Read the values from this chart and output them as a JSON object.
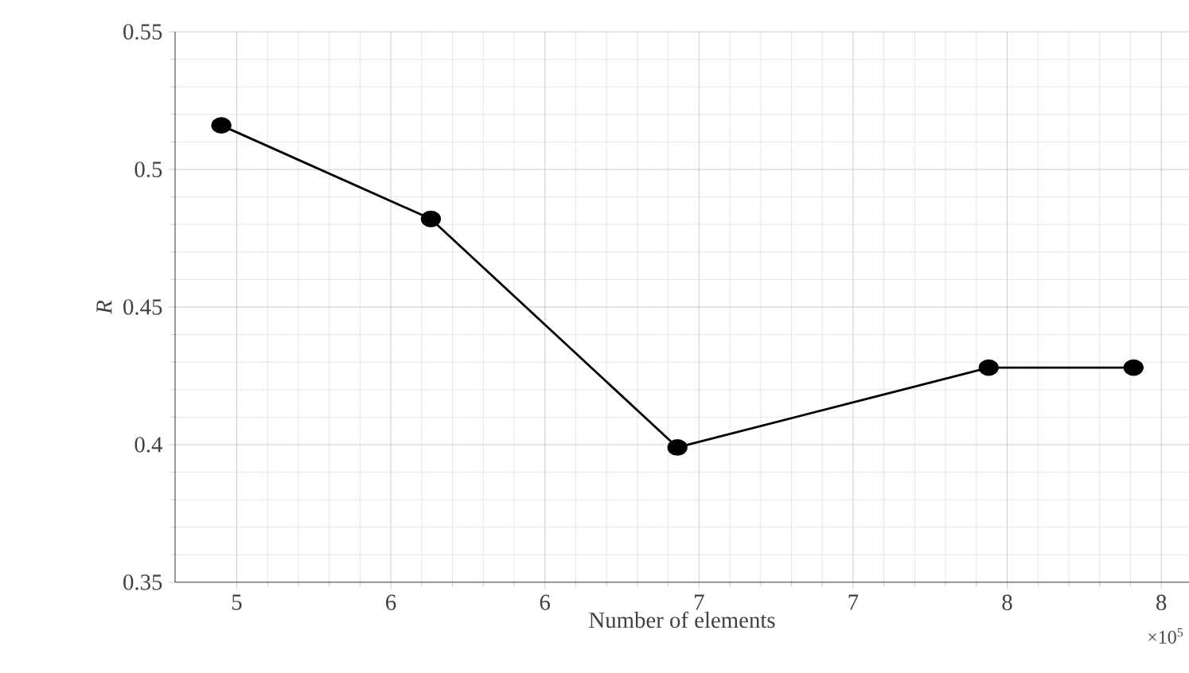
{
  "chart_data": {
    "type": "line",
    "xlabel": "Number of elements",
    "ylabel": "R",
    "x": [
      4.95,
      5.63,
      6.43,
      7.44,
      7.91
    ],
    "series": [
      {
        "color": "#000000",
        "values": [
          0.516,
          0.482,
          0.399,
          0.428,
          0.428
        ]
      }
    ],
    "xlim": [
      4.8,
      8.09
    ],
    "xticks": [
      {
        "value": 5,
        "label": "5"
      },
      {
        "value": 5.5,
        "label": "6"
      },
      {
        "value": 6,
        "label": "6"
      },
      {
        "value": 6.5,
        "label": "7"
      },
      {
        "value": 7,
        "label": "7"
      },
      {
        "value": 7.5,
        "label": "8"
      },
      {
        "value": 8,
        "label": "8"
      }
    ],
    "ylim": [
      0.35,
      0.55
    ],
    "yticks": [
      {
        "value": 0.35,
        "label": "0.35"
      },
      {
        "value": 0.4,
        "label": "0.4"
      },
      {
        "value": 0.45,
        "label": "0.45"
      },
      {
        "value": 0.5,
        "label": "0.5"
      },
      {
        "value": 0.55,
        "label": "0.55"
      }
    ],
    "grid": true,
    "marker": "circle",
    "line_style": "solid",
    "annotations": [
      "×10$^{5}$"
    ]
  }
}
